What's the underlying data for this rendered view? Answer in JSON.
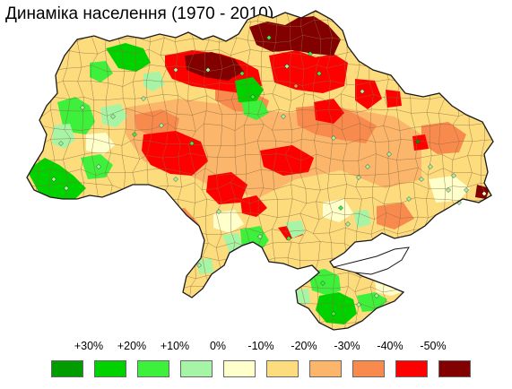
{
  "title": "Динаміка населення (1970 - 2010)",
  "legend": {
    "labels": [
      "+30%",
      "+20%",
      "+10%",
      "0%",
      "-10%",
      "-20%",
      "-30%",
      "-40%",
      "-50%"
    ],
    "classes": [
      {
        "color": "#009c00"
      },
      {
        "color": "#00d200"
      },
      {
        "color": "#3cf03c"
      },
      {
        "color": "#a6f5a6"
      },
      {
        "color": "#ffffcc"
      },
      {
        "color": "#fddc7e"
      },
      {
        "color": "#fbb66b"
      },
      {
        "color": "#f98a4e"
      },
      {
        "color": "#ff0000"
      },
      {
        "color": "#820000"
      }
    ]
  },
  "map": {
    "border_color": "#1a1a1a",
    "district_line_color": "#8c6b40"
  }
}
